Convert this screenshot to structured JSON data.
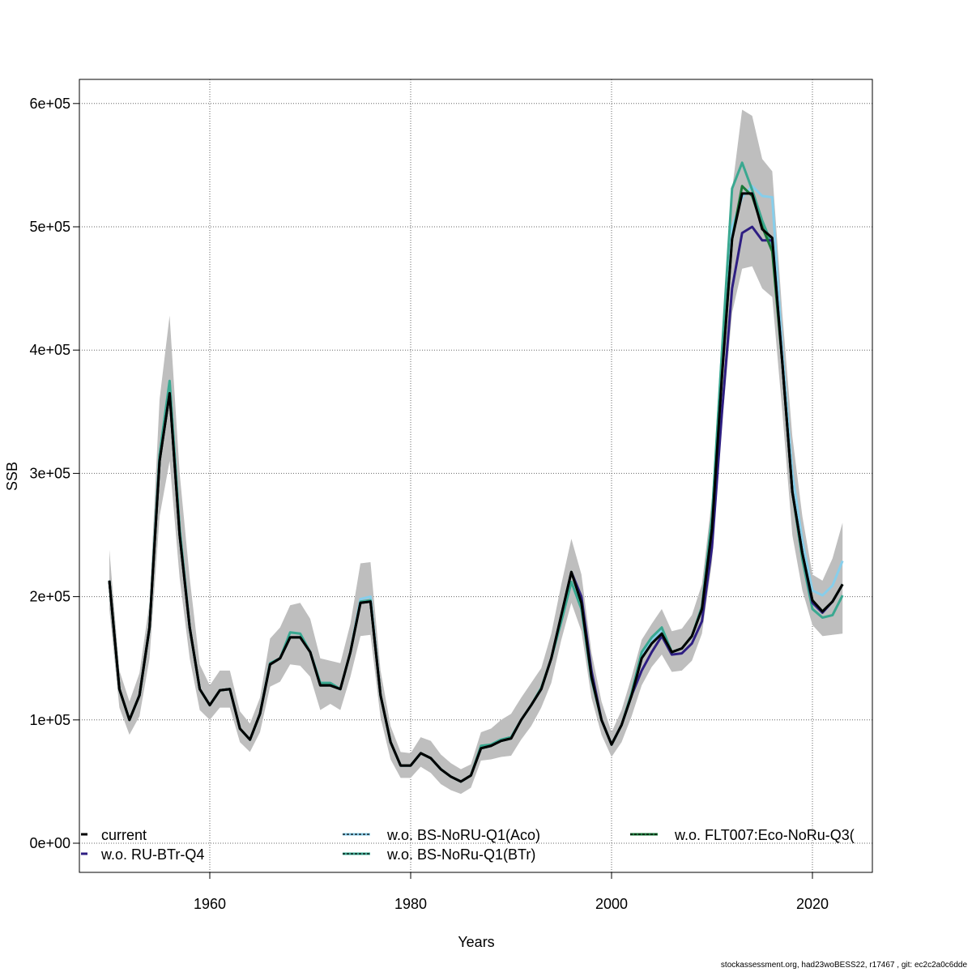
{
  "chart_data": {
    "type": "line",
    "title": "",
    "xlabel": "Years",
    "ylabel": "SSB",
    "xlim": [
      1947,
      2026
    ],
    "ylim": [
      -25000,
      620000
    ],
    "grid": true,
    "x_ticks": [
      1960,
      1980,
      2000,
      2020
    ],
    "y_ticks": [
      {
        "value": 0,
        "label": "0e+00"
      },
      {
        "value": 100000,
        "label": "1e+05"
      },
      {
        "value": 200000,
        "label": "2e+05"
      },
      {
        "value": 300000,
        "label": "3e+05"
      },
      {
        "value": 400000,
        "label": "4e+05"
      },
      {
        "value": 500000,
        "label": "5e+05"
      },
      {
        "value": 600000,
        "label": "6e+05"
      }
    ],
    "x_start": 1950,
    "x_end": 2023,
    "value_scale": 1000,
    "band": {
      "color": "#bebebe",
      "upper": [
        238,
        140,
        115,
        138,
        195,
        360,
        428,
        300,
        215,
        145,
        128,
        140,
        140,
        107,
        97,
        118,
        166,
        175,
        193,
        195,
        182,
        150,
        148,
        146,
        178,
        227,
        228,
        140,
        95,
        74,
        73,
        86,
        83,
        72,
        65,
        60,
        64,
        90,
        93,
        100,
        105,
        118,
        130,
        142,
        170,
        210,
        247,
        218,
        155,
        115,
        90,
        108,
        135,
        165,
        178,
        190,
        172,
        174,
        185,
        210,
        280,
        410,
        530,
        595,
        590,
        555,
        545,
        430,
        330,
        265,
        218,
        213,
        231,
        260
      ],
      "lower": [
        190,
        110,
        88,
        103,
        150,
        265,
        310,
        215,
        150,
        108,
        100,
        110,
        110,
        82,
        74,
        90,
        127,
        131,
        145,
        144,
        135,
        108,
        113,
        108,
        135,
        168,
        169,
        102,
        68,
        53,
        53,
        62,
        57,
        48,
        43,
        40,
        45,
        67,
        68,
        70,
        71,
        84,
        95,
        110,
        130,
        165,
        195,
        172,
        118,
        88,
        70,
        82,
        103,
        128,
        143,
        153,
        139,
        140,
        148,
        170,
        228,
        340,
        430,
        466,
        468,
        450,
        443,
        350,
        250,
        205,
        177,
        168,
        169,
        170
      ]
    },
    "series": [
      {
        "name": "w.o. BS-NoRU-Q1(Aco)",
        "color": "#87ceeb",
        "legend_dash": "3,2",
        "values": [
          213,
          125,
          100,
          120,
          175,
          315,
          375,
          255,
          175,
          125,
          112,
          124,
          125,
          93,
          84,
          105,
          146,
          150,
          171,
          170,
          155,
          130,
          130,
          125,
          155,
          198,
          200,
          120,
          82,
          63,
          63,
          73,
          69,
          60,
          54,
          50,
          55,
          78,
          80,
          84,
          86,
          100,
          112,
          125,
          150,
          180,
          212,
          190,
          133,
          100,
          80,
          96,
          120,
          152,
          165,
          173,
          155,
          158,
          168,
          190,
          260,
          400,
          500,
          524,
          533,
          525,
          524,
          400,
          300,
          245,
          205,
          201,
          209,
          229
        ]
      },
      {
        "name": "w.o. BS-NoRu-Q1(BTr)",
        "color": "#3aa890",
        "legend_dash": "3,2",
        "values": [
          213,
          125,
          100,
          120,
          175,
          315,
          375,
          255,
          175,
          125,
          112,
          124,
          125,
          93,
          84,
          105,
          146,
          150,
          171,
          170,
          155,
          130,
          130,
          125,
          155,
          196,
          197,
          120,
          82,
          63,
          63,
          73,
          69,
          60,
          54,
          50,
          55,
          79,
          80,
          84,
          86,
          100,
          112,
          126,
          150,
          180,
          212,
          190,
          133,
          100,
          80,
          96,
          122,
          155,
          167,
          175,
          155,
          158,
          168,
          192,
          265,
          400,
          531,
          552,
          530,
          505,
          485,
          390,
          285,
          230,
          190,
          183,
          185,
          201
        ]
      },
      {
        "name": "w.o. RU-BTr-Q4",
        "color": "#2e1e82",
        "legend_dash": "",
        "values": [
          213,
          125,
          100,
          120,
          175,
          310,
          365,
          250,
          175,
          125,
          112,
          124,
          125,
          93,
          84,
          105,
          145,
          150,
          167,
          167,
          155,
          128,
          128,
          125,
          155,
          195,
          196,
          120,
          82,
          63,
          63,
          73,
          69,
          60,
          54,
          50,
          55,
          77,
          79,
          83,
          85,
          100,
          112,
          125,
          150,
          185,
          220,
          200,
          140,
          100,
          80,
          96,
          120,
          140,
          155,
          168,
          153,
          154,
          162,
          180,
          240,
          350,
          450,
          495,
          500,
          489,
          489,
          390,
          285,
          235,
          195,
          187,
          196,
          210
        ]
      },
      {
        "name": "w.o. FLT007:Eco-NoRu-Q3(",
        "color": "#1a7a3a",
        "legend_dash": "3,2",
        "values": [
          213,
          125,
          100,
          120,
          175,
          310,
          365,
          250,
          175,
          125,
          112,
          124,
          125,
          93,
          84,
          105,
          145,
          150,
          167,
          167,
          155,
          128,
          128,
          125,
          155,
          195,
          196,
          120,
          82,
          63,
          63,
          73,
          69,
          60,
          54,
          50,
          55,
          77,
          79,
          83,
          85,
          100,
          112,
          125,
          150,
          185,
          220,
          195,
          135,
          100,
          80,
          96,
          120,
          150,
          162,
          170,
          155,
          158,
          168,
          190,
          255,
          380,
          490,
          533,
          525,
          500,
          480,
          390,
          285,
          235,
          197,
          188,
          196,
          210
        ]
      },
      {
        "name": "current",
        "color": "#000000",
        "legend_dash": "",
        "values": [
          213,
          125,
          100,
          120,
          175,
          310,
          365,
          250,
          175,
          125,
          112,
          124,
          125,
          93,
          84,
          105,
          145,
          150,
          167,
          167,
          155,
          128,
          128,
          125,
          155,
          195,
          196,
          120,
          82,
          63,
          63,
          73,
          69,
          60,
          54,
          50,
          55,
          77,
          79,
          83,
          85,
          100,
          112,
          125,
          150,
          185,
          220,
          195,
          135,
          100,
          80,
          96,
          120,
          150,
          162,
          170,
          155,
          158,
          168,
          190,
          255,
          380,
          490,
          527,
          527,
          498,
          491,
          390,
          285,
          235,
          197,
          188,
          196,
          210
        ]
      }
    ],
    "legend": [
      {
        "label": "current",
        "color": "#000000",
        "dash": ""
      },
      {
        "label": "w.o. RU-BTr-Q4",
        "color": "#2e1e82",
        "dash": ""
      },
      {
        "label": "w.o. BS-NoRU-Q1(Aco)",
        "color": "#87ceeb",
        "dash": "3,2"
      },
      {
        "label": "w.o. BS-NoRu-Q1(BTr)",
        "color": "#3aa890",
        "dash": "3,2"
      },
      {
        "label": "w.o. FLT007:Eco-NoRu-Q3(",
        "color": "#1a7a3a",
        "dash": "3,2"
      }
    ],
    "legend_position": "bottom"
  },
  "footer": "stockassessment.org, had23woBESS22, r17467 , git: ec2c2a0c6dde"
}
